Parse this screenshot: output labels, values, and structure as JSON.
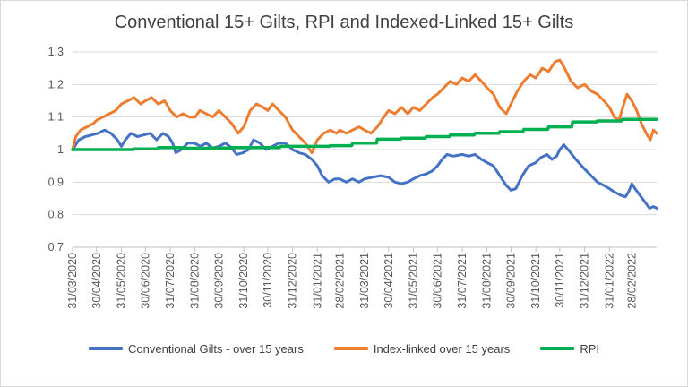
{
  "chart_data": {
    "type": "line",
    "title": "Conventional 15+ Gilts, RPI and Indexed-Linked 15+ Gilts",
    "xlabel": "",
    "ylabel": "",
    "ylim": [
      0.7,
      1.3
    ],
    "yticks": [
      "0.7",
      "0.8",
      "0.9",
      "1",
      "1.1",
      "1.2",
      "1.3"
    ],
    "grid": "horizontal",
    "legend_position": "bottom",
    "x_tick_labels": [
      "31/03/2020",
      "30/04/2020",
      "31/05/2020",
      "30/06/2020",
      "31/07/2020",
      "31/08/2020",
      "30/09/2020",
      "31/10/2020",
      "30/11/2020",
      "31/12/2020",
      "31/01/2021",
      "28/02/2021",
      "31/03/2021",
      "30/04/2021",
      "31/05/2021",
      "30/06/2021",
      "31/07/2021",
      "31/08/2021",
      "30/09/2021",
      "31/10/2021",
      "30/11/2021",
      "31/12/2021",
      "31/01/2022",
      "28/02/2022"
    ],
    "x_end": "31/03/2022",
    "series": [
      {
        "name": "Conventional Gilts - over 15 years",
        "color": "#4472C4",
        "points": [
          [
            "2020-03-31",
            1.0
          ],
          [
            "2020-04-08",
            1.03
          ],
          [
            "2020-04-16",
            1.04
          ],
          [
            "2020-04-24",
            1.045
          ],
          [
            "2020-05-02",
            1.05
          ],
          [
            "2020-05-10",
            1.06
          ],
          [
            "2020-05-18",
            1.05
          ],
          [
            "2020-05-26",
            1.03
          ],
          [
            "2020-05-31",
            1.01
          ],
          [
            "2020-06-05",
            1.03
          ],
          [
            "2020-06-12",
            1.05
          ],
          [
            "2020-06-20",
            1.04
          ],
          [
            "2020-06-28",
            1.045
          ],
          [
            "2020-07-06",
            1.05
          ],
          [
            "2020-07-14",
            1.03
          ],
          [
            "2020-07-22",
            1.05
          ],
          [
            "2020-07-29",
            1.04
          ],
          [
            "2020-08-03",
            1.02
          ],
          [
            "2020-08-07",
            0.99
          ],
          [
            "2020-08-14",
            1.0
          ],
          [
            "2020-08-22",
            1.02
          ],
          [
            "2020-08-30",
            1.02
          ],
          [
            "2020-09-07",
            1.01
          ],
          [
            "2020-09-14",
            1.02
          ],
          [
            "2020-09-22",
            1.005
          ],
          [
            "2020-09-30",
            1.01
          ],
          [
            "2020-10-08",
            1.02
          ],
          [
            "2020-10-16",
            1.005
          ],
          [
            "2020-10-22",
            0.985
          ],
          [
            "2020-10-30",
            0.99
          ],
          [
            "2020-11-06",
            1.0
          ],
          [
            "2020-11-12",
            1.03
          ],
          [
            "2020-11-20",
            1.02
          ],
          [
            "2020-11-28",
            1.0
          ],
          [
            "2020-12-06",
            1.01
          ],
          [
            "2020-12-14",
            1.02
          ],
          [
            "2020-12-22",
            1.02
          ],
          [
            "2020-12-31",
            1.0
          ],
          [
            "2021-01-08",
            0.99
          ],
          [
            "2021-01-16",
            0.985
          ],
          [
            "2021-01-24",
            0.97
          ],
          [
            "2021-01-31",
            0.95
          ],
          [
            "2021-02-06",
            0.92
          ],
          [
            "2021-02-14",
            0.9
          ],
          [
            "2021-02-22",
            0.91
          ],
          [
            "2021-02-28",
            0.91
          ],
          [
            "2021-03-08",
            0.9
          ],
          [
            "2021-03-16",
            0.91
          ],
          [
            "2021-03-24",
            0.9
          ],
          [
            "2021-03-31",
            0.91
          ],
          [
            "2021-04-10",
            0.915
          ],
          [
            "2021-04-20",
            0.92
          ],
          [
            "2021-04-30",
            0.915
          ],
          [
            "2021-05-08",
            0.9
          ],
          [
            "2021-05-16",
            0.895
          ],
          [
            "2021-05-24",
            0.9
          ],
          [
            "2021-05-31",
            0.91
          ],
          [
            "2021-06-08",
            0.92
          ],
          [
            "2021-06-16",
            0.925
          ],
          [
            "2021-06-24",
            0.935
          ],
          [
            "2021-06-30",
            0.95
          ],
          [
            "2021-07-06",
            0.97
          ],
          [
            "2021-07-12",
            0.985
          ],
          [
            "2021-07-20",
            0.98
          ],
          [
            "2021-07-31",
            0.985
          ],
          [
            "2021-08-08",
            0.98
          ],
          [
            "2021-08-16",
            0.985
          ],
          [
            "2021-08-24",
            0.97
          ],
          [
            "2021-08-31",
            0.96
          ],
          [
            "2021-09-08",
            0.95
          ],
          [
            "2021-09-16",
            0.92
          ],
          [
            "2021-09-24",
            0.89
          ],
          [
            "2021-09-30",
            0.875
          ],
          [
            "2021-10-06",
            0.88
          ],
          [
            "2021-10-14",
            0.92
          ],
          [
            "2021-10-22",
            0.95
          ],
          [
            "2021-10-31",
            0.96
          ],
          [
            "2021-11-06",
            0.975
          ],
          [
            "2021-11-14",
            0.985
          ],
          [
            "2021-11-20",
            0.97
          ],
          [
            "2021-11-26",
            0.98
          ],
          [
            "2021-11-30",
            1.0
          ],
          [
            "2021-12-05",
            1.015
          ],
          [
            "2021-12-12",
            0.995
          ],
          [
            "2021-12-20",
            0.97
          ],
          [
            "2021-12-31",
            0.94
          ],
          [
            "2022-01-08",
            0.92
          ],
          [
            "2022-01-16",
            0.9
          ],
          [
            "2022-01-24",
            0.89
          ],
          [
            "2022-01-31",
            0.88
          ],
          [
            "2022-02-06",
            0.87
          ],
          [
            "2022-02-14",
            0.86
          ],
          [
            "2022-02-20",
            0.855
          ],
          [
            "2022-02-24",
            0.87
          ],
          [
            "2022-02-28",
            0.895
          ],
          [
            "2022-03-04",
            0.88
          ],
          [
            "2022-03-10",
            0.86
          ],
          [
            "2022-03-16",
            0.84
          ],
          [
            "2022-03-22",
            0.82
          ],
          [
            "2022-03-27",
            0.825
          ],
          [
            "2022-03-31",
            0.82
          ]
        ]
      },
      {
        "name": "Index-linked over 15 years",
        "color": "#ED7D31",
        "points": [
          [
            "2020-03-31",
            1.0
          ],
          [
            "2020-04-04",
            1.04
          ],
          [
            "2020-04-10",
            1.06
          ],
          [
            "2020-04-18",
            1.07
          ],
          [
            "2020-04-26",
            1.08
          ],
          [
            "2020-04-30",
            1.09
          ],
          [
            "2020-05-08",
            1.1
          ],
          [
            "2020-05-16",
            1.11
          ],
          [
            "2020-05-24",
            1.12
          ],
          [
            "2020-05-31",
            1.14
          ],
          [
            "2020-06-08",
            1.15
          ],
          [
            "2020-06-16",
            1.16
          ],
          [
            "2020-06-24",
            1.14
          ],
          [
            "2020-06-30",
            1.15
          ],
          [
            "2020-07-08",
            1.16
          ],
          [
            "2020-07-16",
            1.14
          ],
          [
            "2020-07-24",
            1.15
          ],
          [
            "2020-07-31",
            1.12
          ],
          [
            "2020-08-08",
            1.1
          ],
          [
            "2020-08-16",
            1.11
          ],
          [
            "2020-08-24",
            1.1
          ],
          [
            "2020-08-31",
            1.1
          ],
          [
            "2020-09-06",
            1.12
          ],
          [
            "2020-09-14",
            1.11
          ],
          [
            "2020-09-22",
            1.1
          ],
          [
            "2020-09-30",
            1.12
          ],
          [
            "2020-10-08",
            1.1
          ],
          [
            "2020-10-16",
            1.08
          ],
          [
            "2020-10-24",
            1.05
          ],
          [
            "2020-10-31",
            1.07
          ],
          [
            "2020-11-08",
            1.12
          ],
          [
            "2020-11-16",
            1.14
          ],
          [
            "2020-11-24",
            1.13
          ],
          [
            "2020-11-30",
            1.12
          ],
          [
            "2020-12-06",
            1.14
          ],
          [
            "2020-12-14",
            1.12
          ],
          [
            "2020-12-22",
            1.1
          ],
          [
            "2020-12-31",
            1.06
          ],
          [
            "2021-01-08",
            1.04
          ],
          [
            "2021-01-16",
            1.02
          ],
          [
            "2021-01-24",
            0.99
          ],
          [
            "2021-01-31",
            1.03
          ],
          [
            "2021-02-08",
            1.05
          ],
          [
            "2021-02-16",
            1.06
          ],
          [
            "2021-02-24",
            1.05
          ],
          [
            "2021-02-28",
            1.06
          ],
          [
            "2021-03-08",
            1.05
          ],
          [
            "2021-03-16",
            1.06
          ],
          [
            "2021-03-24",
            1.07
          ],
          [
            "2021-03-31",
            1.06
          ],
          [
            "2021-04-08",
            1.05
          ],
          [
            "2021-04-16",
            1.07
          ],
          [
            "2021-04-24",
            1.1
          ],
          [
            "2021-04-30",
            1.12
          ],
          [
            "2021-05-08",
            1.11
          ],
          [
            "2021-05-16",
            1.13
          ],
          [
            "2021-05-24",
            1.11
          ],
          [
            "2021-05-31",
            1.13
          ],
          [
            "2021-06-08",
            1.12
          ],
          [
            "2021-06-16",
            1.14
          ],
          [
            "2021-06-24",
            1.16
          ],
          [
            "2021-06-30",
            1.17
          ],
          [
            "2021-07-08",
            1.19
          ],
          [
            "2021-07-16",
            1.21
          ],
          [
            "2021-07-24",
            1.2
          ],
          [
            "2021-07-31",
            1.22
          ],
          [
            "2021-08-08",
            1.21
          ],
          [
            "2021-08-16",
            1.23
          ],
          [
            "2021-08-24",
            1.21
          ],
          [
            "2021-08-31",
            1.19
          ],
          [
            "2021-09-08",
            1.17
          ],
          [
            "2021-09-16",
            1.13
          ],
          [
            "2021-09-24",
            1.11
          ],
          [
            "2021-09-30",
            1.14
          ],
          [
            "2021-10-08",
            1.18
          ],
          [
            "2021-10-16",
            1.21
          ],
          [
            "2021-10-24",
            1.23
          ],
          [
            "2021-10-31",
            1.22
          ],
          [
            "2021-11-08",
            1.25
          ],
          [
            "2021-11-16",
            1.24
          ],
          [
            "2021-11-24",
            1.27
          ],
          [
            "2021-11-30",
            1.275
          ],
          [
            "2021-12-06",
            1.25
          ],
          [
            "2021-12-14",
            1.21
          ],
          [
            "2021-12-22",
            1.19
          ],
          [
            "2021-12-31",
            1.2
          ],
          [
            "2022-01-08",
            1.18
          ],
          [
            "2022-01-16",
            1.17
          ],
          [
            "2022-01-24",
            1.15
          ],
          [
            "2022-01-31",
            1.13
          ],
          [
            "2022-02-06",
            1.1
          ],
          [
            "2022-02-12",
            1.09
          ],
          [
            "2022-02-18",
            1.14
          ],
          [
            "2022-02-22",
            1.17
          ],
          [
            "2022-02-28",
            1.15
          ],
          [
            "2022-03-06",
            1.12
          ],
          [
            "2022-03-12",
            1.08
          ],
          [
            "2022-03-18",
            1.05
          ],
          [
            "2022-03-23",
            1.03
          ],
          [
            "2022-03-27",
            1.06
          ],
          [
            "2022-03-31",
            1.05
          ]
        ]
      },
      {
        "name": "RPI",
        "color": "#00B050",
        "points": [
          [
            "2020-03-31",
            1.0
          ],
          [
            "2020-06-15",
            1.0
          ],
          [
            "2020-06-16",
            1.002
          ],
          [
            "2020-07-15",
            1.002
          ],
          [
            "2020-07-16",
            1.006
          ],
          [
            "2020-08-15",
            1.006
          ],
          [
            "2020-08-16",
            1.004
          ],
          [
            "2020-09-15",
            1.004
          ],
          [
            "2020-09-16",
            1.005
          ],
          [
            "2020-10-15",
            1.005
          ],
          [
            "2020-10-16",
            1.006
          ],
          [
            "2020-11-15",
            1.006
          ],
          [
            "2020-11-16",
            1.006
          ],
          [
            "2020-12-15",
            1.006
          ],
          [
            "2020-12-16",
            1.01
          ],
          [
            "2021-01-15",
            1.01
          ],
          [
            "2021-01-16",
            1.01
          ],
          [
            "2021-02-15",
            1.01
          ],
          [
            "2021-02-16",
            1.012
          ],
          [
            "2021-03-15",
            1.012
          ],
          [
            "2021-03-16",
            1.02
          ],
          [
            "2021-04-15",
            1.02
          ],
          [
            "2021-04-16",
            1.032
          ],
          [
            "2021-05-15",
            1.032
          ],
          [
            "2021-05-16",
            1.035
          ],
          [
            "2021-06-15",
            1.035
          ],
          [
            "2021-06-16",
            1.04
          ],
          [
            "2021-07-15",
            1.04
          ],
          [
            "2021-07-16",
            1.045
          ],
          [
            "2021-08-15",
            1.045
          ],
          [
            "2021-08-16",
            1.05
          ],
          [
            "2021-09-15",
            1.05
          ],
          [
            "2021-09-16",
            1.055
          ],
          [
            "2021-10-15",
            1.055
          ],
          [
            "2021-10-16",
            1.062
          ],
          [
            "2021-11-15",
            1.062
          ],
          [
            "2021-11-16",
            1.07
          ],
          [
            "2021-12-15",
            1.07
          ],
          [
            "2021-12-16",
            1.085
          ],
          [
            "2022-01-15",
            1.085
          ],
          [
            "2022-01-16",
            1.088
          ],
          [
            "2022-02-15",
            1.088
          ],
          [
            "2022-02-16",
            1.093
          ],
          [
            "2022-03-31",
            1.093
          ]
        ]
      }
    ]
  }
}
